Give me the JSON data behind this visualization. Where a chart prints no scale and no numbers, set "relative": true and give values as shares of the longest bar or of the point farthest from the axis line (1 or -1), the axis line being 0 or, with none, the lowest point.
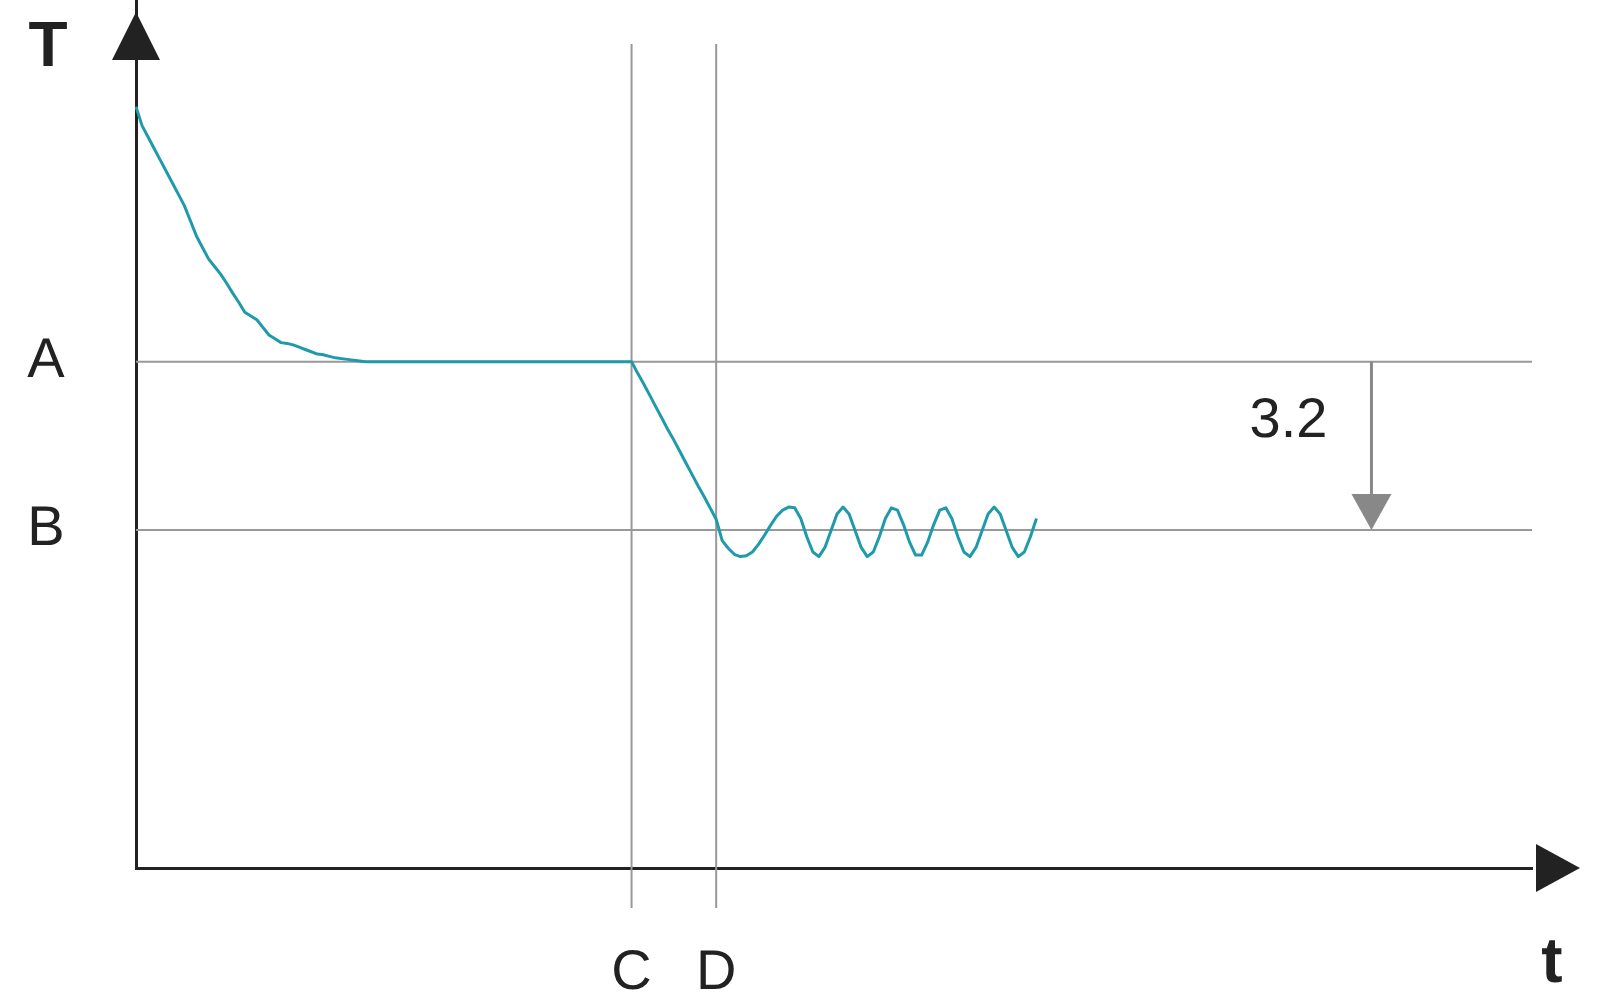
{
  "chart_data": {
    "type": "line",
    "relative": true,
    "xlabel": "t",
    "ylabel": "T",
    "marker": "none",
    "grid": "x",
    "ref_lines": [
      {
        "axis": "y",
        "value": 0.665,
        "label": "A",
        "color": "#999999"
      },
      {
        "axis": "y",
        "value": 0.444,
        "label": "B",
        "color": "#999999"
      }
    ],
    "categories": [
      null,
      null,
      null,
      null,
      null,
      null,
      null,
      null,
      null,
      null,
      null,
      null,
      null,
      null,
      null,
      null,
      null,
      null,
      null,
      null,
      null,
      null,
      null,
      null,
      null,
      null,
      null,
      null,
      null,
      null,
      null,
      null,
      null,
      null,
      null,
      null,
      null,
      null,
      null,
      null,
      null,
      null,
      null,
      null,
      null,
      null,
      null,
      null,
      null,
      null,
      null,
      null,
      null,
      null,
      null,
      null,
      null,
      null,
      null,
      null,
      null,
      null,
      null,
      null,
      null,
      null,
      null,
      null,
      null,
      null,
      null,
      null,
      null,
      null,
      null,
      null,
      null,
      null,
      null,
      null,
      null,
      null,
      "C",
      null,
      null,
      null,
      null,
      null,
      null,
      null,
      null,
      null,
      null,
      null,
      null,
      null,
      "D",
      null,
      null,
      null,
      null,
      null,
      null,
      null,
      null,
      null,
      null,
      null,
      null,
      null,
      null,
      null,
      null,
      null,
      null,
      null,
      null,
      null,
      null,
      null,
      null,
      null,
      null,
      null,
      null,
      null,
      null,
      null,
      null,
      null,
      null,
      null,
      null,
      null,
      null,
      null,
      null,
      null,
      null,
      null,
      null,
      null,
      null,
      null,
      null,
      null,
      null,
      null,
      null,
      null,
      null,
      null,
      null,
      null,
      null,
      null,
      null,
      null,
      null,
      null,
      null,
      null,
      null,
      null,
      null,
      null,
      null,
      null,
      null,
      null,
      null,
      null,
      null,
      null,
      null,
      null,
      null,
      null,
      null,
      null,
      null,
      null,
      null,
      null,
      null,
      null,
      null,
      null,
      null,
      null,
      null,
      null,
      null,
      null,
      null,
      null,
      null,
      null,
      null,
      null,
      null,
      null,
      null,
      null,
      null,
      null,
      null,
      null,
      null,
      null,
      null,
      null,
      null,
      null,
      null,
      null,
      null,
      null,
      null,
      null,
      null,
      null,
      null,
      null,
      null,
      null,
      null,
      null,
      null,
      null,
      null,
      null
    ],
    "values": [
      1,
      0.975,
      0.96,
      0.945,
      0.93,
      0.915,
      0.9,
      0.885,
      0.87,
      0.85,
      0.83,
      0.815,
      0.8,
      0.79,
      0.78,
      0.768,
      0.755,
      0.743,
      0.73,
      0.725,
      0.72,
      0.71,
      0.7,
      0.695,
      0.69,
      0.689,
      0.687,
      0.684,
      0.681,
      0.678,
      0.675,
      0.674,
      0.672,
      0.67,
      0.669,
      0.668,
      0.667,
      0.666,
      0.665,
      0.665,
      0.665,
      0.665,
      0.665,
      0.665,
      0.665,
      0.665,
      0.665,
      0.665,
      0.665,
      0.665,
      0.665,
      0.665,
      0.665,
      0.665,
      0.665,
      0.665,
      0.665,
      0.665,
      0.665,
      0.665,
      0.665,
      0.665,
      0.665,
      0.665,
      0.665,
      0.665,
      0.665,
      0.665,
      0.665,
      0.665,
      0.665,
      0.665,
      0.665,
      0.665,
      0.665,
      0.665,
      0.665,
      0.665,
      0.665,
      0.665,
      0.665,
      0.665,
      0.665,
      0.65,
      0.636,
      0.621,
      0.606,
      0.591,
      0.576,
      0.562,
      0.547,
      0.532,
      0.517,
      0.502,
      0.488,
      0.473,
      0.458,
      0.43,
      0.42,
      0.412,
      0.409,
      0.41,
      0.415,
      0.425,
      0.437,
      0.45,
      0.462,
      0.47,
      0.474,
      0.473,
      0.459,
      0.435,
      0.415,
      0.409,
      0.421,
      0.443,
      0.465,
      0.474,
      0.465,
      0.443,
      0.421,
      0.409,
      0.415,
      0.435,
      0.459,
      0.473,
      0.47,
      0.451,
      0.428,
      0.411,
      0.411,
      0.428,
      0.451,
      0.47,
      0.473,
      0.459,
      0.435,
      0.415,
      0.409,
      0.421,
      0.443,
      0.465,
      0.474,
      0.465,
      0.443,
      0.421,
      0.409,
      0.415,
      0.435,
      0.459,
      null,
      null,
      null,
      null,
      null,
      null,
      null,
      null,
      null,
      null,
      null,
      null,
      null,
      null,
      null,
      null,
      null,
      null,
      null,
      null,
      null,
      null,
      null,
      null,
      null,
      null,
      null,
      null,
      null,
      null,
      null,
      null,
      null,
      null,
      null,
      null,
      null,
      null,
      null,
      null,
      null,
      null,
      null,
      null,
      null,
      null,
      null,
      null,
      null,
      null,
      null,
      null,
      null,
      null,
      null,
      null,
      null,
      null,
      null,
      null,
      null,
      null,
      null,
      null,
      null,
      null,
      null,
      null,
      null,
      null,
      null,
      null,
      null,
      null,
      null,
      null,
      null,
      null,
      null,
      null,
      null,
      null
    ],
    "color": "#1f9aab",
    "annotations": [
      "3.2"
    ]
  }
}
